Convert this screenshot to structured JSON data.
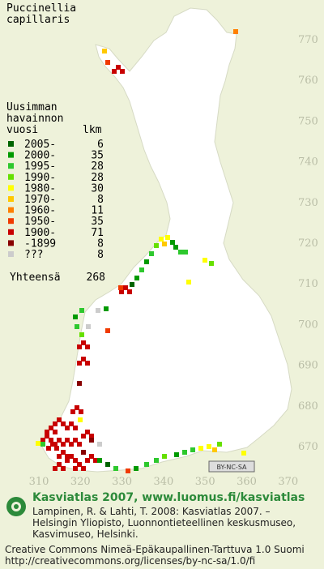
{
  "title": [
    "Puccinellia",
    "capillaris"
  ],
  "legend": {
    "header": [
      "Uusimman",
      "havainnon",
      "vuosi",
      "lkm"
    ],
    "rows": [
      {
        "label": "2005-",
        "count": 6,
        "color": "#006400"
      },
      {
        "label": "2000-",
        "count": 35,
        "color": "#009a00"
      },
      {
        "label": "1995-",
        "count": 28,
        "color": "#2ec82e"
      },
      {
        "label": "1990-",
        "count": 28,
        "color": "#66e000"
      },
      {
        "label": "1980-",
        "count": 30,
        "color": "#ffff00"
      },
      {
        "label": "1970-",
        "count": 8,
        "color": "#ffc800"
      },
      {
        "label": "1960-",
        "count": 11,
        "color": "#ff8000"
      },
      {
        "label": "1950-",
        "count": 35,
        "color": "#f03a00"
      },
      {
        "label": "1900-",
        "count": 71,
        "color": "#c80000"
      },
      {
        "label": "-1899",
        "count": 8,
        "color": "#880000"
      },
      {
        "label": "???",
        "count": 8,
        "color": "#cccccc"
      }
    ],
    "total_label": "Yhteensä",
    "total": 268
  },
  "grid": {
    "xticks": [
      310,
      320,
      330,
      340,
      350,
      360,
      370
    ],
    "yticks": [
      670,
      680,
      690,
      700,
      710,
      720,
      730,
      740,
      750,
      760,
      770
    ]
  },
  "license_badge": "BY-NC-SA",
  "footer": {
    "heading": "Kasviatlas 2007, www.luomus.fi/kasviatlas",
    "citation": [
      "Lampinen, R. & Lahti, T. 2008: Kasviatlas 2007. –",
      "Helsingin Yliopisto, Luonnontieteellinen keskusmuseo,",
      "Kasvimuseo, Helsinki."
    ],
    "license": [
      "Creative Commons Nimeä-Epäkaupallinen-Tarttuva 1.0 Suomi",
      "http://creativecommons.org/licenses/by-nc-sa/1.0/fi"
    ]
  }
}
